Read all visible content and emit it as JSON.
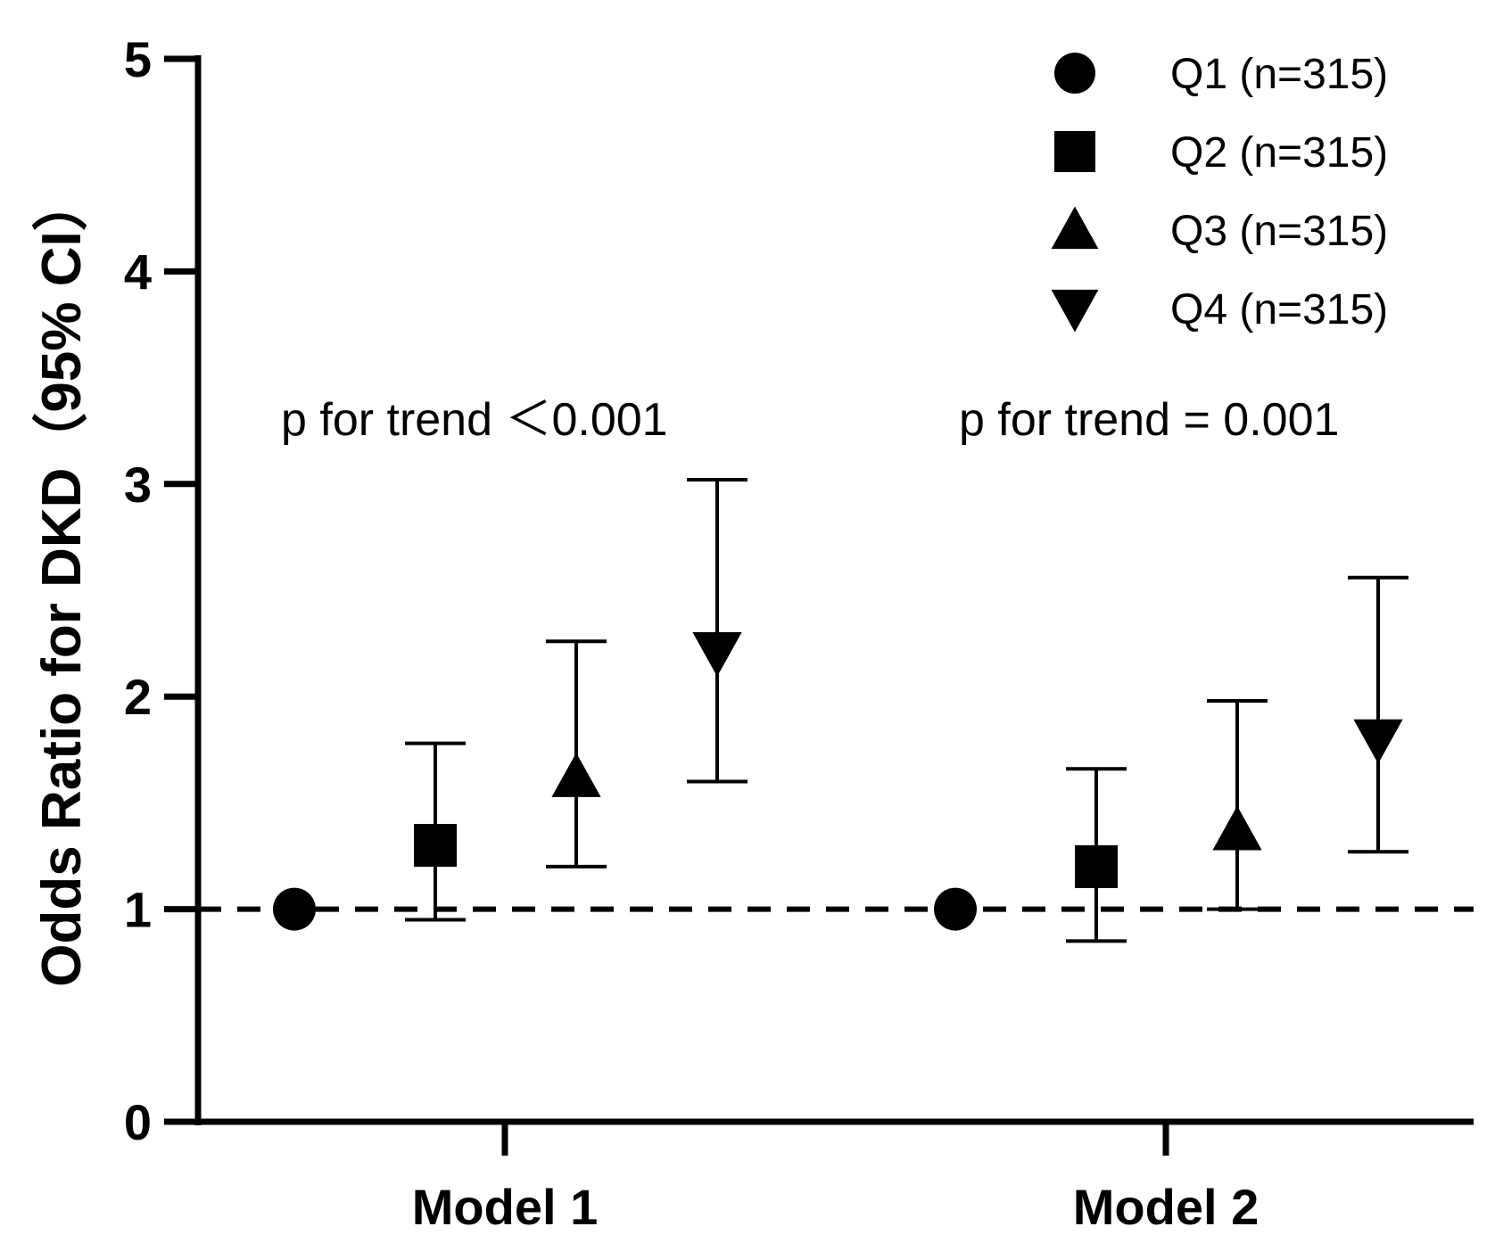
{
  "chart_data": {
    "type": "scatter",
    "title": "",
    "xlabel": "",
    "ylabel": "Odds Ratio for DKD（95% CI）",
    "ylim": [
      0,
      5
    ],
    "yticks": [
      "0",
      "1",
      "2",
      "3",
      "4",
      "5"
    ],
    "categories": [
      "Model 1",
      "Model 2"
    ],
    "reference_line": 1,
    "grid": false,
    "legend_position": "top-right",
    "series": [
      {
        "name": "Q1 (n=315)",
        "marker": "circle",
        "values": [
          1.0,
          1.0
        ],
        "ci_low": [
          1.0,
          1.0
        ],
        "ci_high": [
          1.0,
          1.0
        ]
      },
      {
        "name": "Q2 (n=315)",
        "marker": "square",
        "values": [
          1.3,
          1.2
        ],
        "ci_low": [
          0.95,
          0.85
        ],
        "ci_high": [
          1.78,
          1.66
        ]
      },
      {
        "name": "Q3 (n=315)",
        "marker": "triangle-up",
        "values": [
          1.62,
          1.37
        ],
        "ci_low": [
          1.2,
          1.0
        ],
        "ci_high": [
          2.26,
          1.98
        ]
      },
      {
        "name": "Q4 (n=315)",
        "marker": "triangle-down",
        "values": [
          2.21,
          1.8
        ],
        "ci_low": [
          1.6,
          1.27
        ],
        "ci_high": [
          3.02,
          2.56
        ]
      }
    ],
    "annotations": [
      "p for trend ＜0.001",
      "p for trend = 0.001"
    ]
  }
}
